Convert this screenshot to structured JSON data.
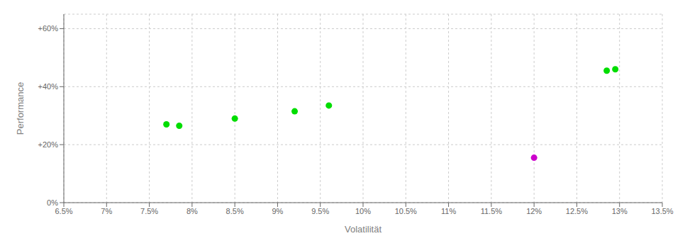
{
  "chart_data": {
    "type": "scatter",
    "x_label": "Volatilität",
    "y_label": "Performance",
    "series": [
      {
        "color": "#00dd00",
        "x": [
          0.077,
          0.0785,
          0.085,
          0.092,
          0.096,
          0.1285,
          0.1295
        ],
        "values": [
          0.27,
          0.265,
          0.29,
          0.315,
          0.335,
          0.455,
          0.46
        ]
      },
      {
        "color": "#cc00cc",
        "x": [
          0.12
        ],
        "values": [
          0.155
        ]
      }
    ],
    "xlim": [
      0.065,
      0.135
    ],
    "ylim": [
      0.0,
      0.65
    ],
    "xticks": [
      {
        "value": 0.065,
        "label": "6.5%"
      },
      {
        "value": 0.07,
        "label": "7%"
      },
      {
        "value": 0.075,
        "label": "7.5%"
      },
      {
        "value": 0.08,
        "label": "8%"
      },
      {
        "value": 0.085,
        "label": "8.5%"
      },
      {
        "value": 0.09,
        "label": "9%"
      },
      {
        "value": 0.095,
        "label": "9.5%"
      },
      {
        "value": 0.1,
        "label": "10%"
      },
      {
        "value": 0.105,
        "label": "10.5%"
      },
      {
        "value": 0.11,
        "label": "11%"
      },
      {
        "value": 0.115,
        "label": "11.5%"
      },
      {
        "value": 0.12,
        "label": "12%"
      },
      {
        "value": 0.125,
        "label": "12.5%"
      },
      {
        "value": 0.13,
        "label": "13%"
      },
      {
        "value": 0.135,
        "label": "13.5%"
      }
    ],
    "yticks": [
      {
        "value": 0.0,
        "label": "0%"
      },
      {
        "value": 0.2,
        "label": "+20%"
      },
      {
        "value": 0.4,
        "label": "+40%"
      },
      {
        "value": 0.6,
        "label": "+60%"
      }
    ],
    "grid": true
  }
}
